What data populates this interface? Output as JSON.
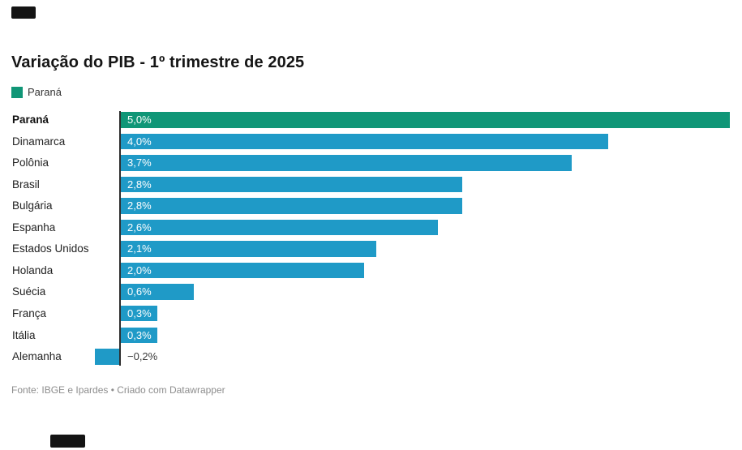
{
  "header": {
    "title": "Variação do PIB - 1º trimestre de 2025"
  },
  "legend": {
    "label": "Paraná",
    "color": "#109677"
  },
  "chart_data": {
    "type": "bar",
    "orientation": "horizontal",
    "title": "Variação do PIB - 1º trimestre de 2025",
    "categories": [
      "Paraná",
      "Dinamarca",
      "Polônia",
      "Brasil",
      "Bulgária",
      "Espanha",
      "Estados Unidos",
      "Holanda",
      "Suécia",
      "França",
      "Itália",
      "Alemanha"
    ],
    "values": [
      5.0,
      4.0,
      3.7,
      2.8,
      2.8,
      2.6,
      2.1,
      2.0,
      0.6,
      0.3,
      0.3,
      -0.2
    ],
    "value_labels": [
      "5,0%",
      "4,0%",
      "3,7%",
      "2,8%",
      "2,8%",
      "2,6%",
      "2,1%",
      "2,0%",
      "0,6%",
      "0,3%",
      "0,3%",
      "−0,2%"
    ],
    "unit": "%",
    "xlim": [
      -0.3,
      5.1
    ],
    "grid": false,
    "legend_position": "top-left",
    "highlight_category": "Paraná",
    "colors": {
      "highlight": "#109677",
      "default": "#1f9ac7",
      "axis": "#2e2e2e",
      "value_label_inside": "#ffffff",
      "value_label_outside": "#3a3a3a"
    }
  },
  "footer": {
    "text": "Fonte: IBGE e Ipardes • Criado com Datawrapper"
  }
}
